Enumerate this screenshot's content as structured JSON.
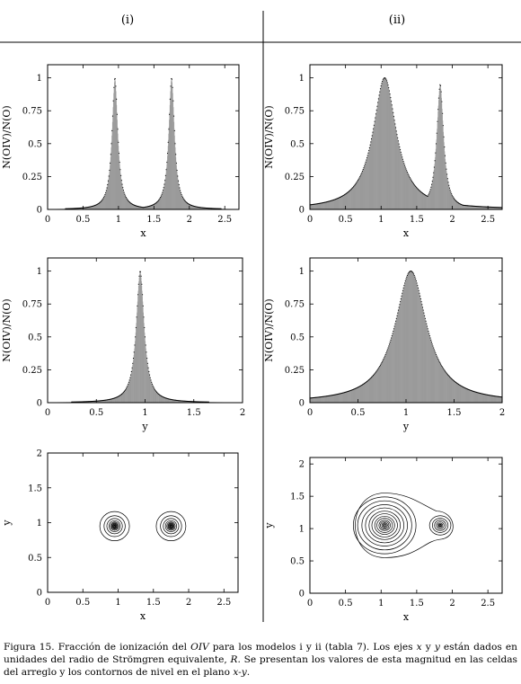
{
  "columns": [
    "(i)",
    "(ii)"
  ],
  "caption": {
    "fig": "Figura 15.",
    "t1": " Fracción de ionización del ",
    "ion": "OIV",
    "t2": " para los modelos i y ii (tabla 7). Los ejes ",
    "ax": "x",
    "t3": " y ",
    "ay": "y",
    "t4": " están dados en unidades del radio de Strömgren equivalente, ",
    "R": "R",
    "t5": ". Se presentan los valores de esta magnitud en las celdas del arreglo y los contornos de nivel en el plano ",
    "plane": "x-y",
    "t6": "."
  },
  "chart_data": [
    {
      "id": "i-x",
      "type": "scatter",
      "xlabel": "x",
      "ylabel": "N(OIV)/N(O)",
      "xlim": [
        0,
        2.7
      ],
      "ylim": [
        0,
        1.1
      ],
      "xticks": [
        "0",
        "0.5",
        "1",
        "1.5",
        "2",
        "2.5"
      ],
      "yticks": [
        "0",
        "0.25",
        "0.5",
        "0.75",
        "1"
      ],
      "peaks": [
        {
          "x": 0.95,
          "y": 1.0,
          "w": 0.05
        },
        {
          "x": 1.75,
          "y": 1.0,
          "w": 0.05
        }
      ]
    },
    {
      "id": "ii-x",
      "type": "scatter",
      "xlabel": "x",
      "ylabel": "N(OIV)/N(O)",
      "xlim": [
        0,
        2.7
      ],
      "ylim": [
        0,
        1.1
      ],
      "xticks": [
        "0",
        "0.5",
        "1",
        "1.5",
        "2",
        "2.5"
      ],
      "yticks": [
        "0",
        "0.25",
        "0.5",
        "0.75",
        "1"
      ],
      "peaks": [
        {
          "x": 1.05,
          "y": 1.0,
          "w": 0.2
        },
        {
          "x": 1.83,
          "y": 0.95,
          "w": 0.06
        }
      ]
    },
    {
      "id": "i-y",
      "type": "scatter",
      "xlabel": "y",
      "ylabel": "N(OIV)/N(O)",
      "xlim": [
        0,
        2
      ],
      "ylim": [
        0,
        1.1
      ],
      "xticks": [
        "0",
        "0.5",
        "1",
        "1.5",
        "2"
      ],
      "yticks": [
        "0",
        "0.25",
        "0.5",
        "0.75",
        "1"
      ],
      "peaks": [
        {
          "x": 0.95,
          "y": 1.0,
          "w": 0.05
        }
      ]
    },
    {
      "id": "ii-y",
      "type": "scatter",
      "xlabel": "y",
      "ylabel": "N(OIV)/N(O)",
      "xlim": [
        0,
        2
      ],
      "ylim": [
        0,
        1.1
      ],
      "xticks": [
        "0",
        "0.5",
        "1",
        "1.5",
        "2"
      ],
      "yticks": [
        "0",
        "0.25",
        "0.5",
        "0.75",
        "1"
      ],
      "peaks": [
        {
          "x": 1.05,
          "y": 1.0,
          "w": 0.2
        }
      ]
    },
    {
      "id": "i-xy",
      "type": "contour",
      "xlabel": "x",
      "ylabel": "y",
      "xlim": [
        0,
        2.7
      ],
      "ylim": [
        0,
        2
      ],
      "xticks": [
        "0",
        "0.5",
        "1",
        "1.5",
        "2",
        "2.5"
      ],
      "yticks": [
        "0",
        "0.5",
        "1",
        "1.5",
        "2"
      ],
      "centers": [
        {
          "x": 0.95,
          "y": 0.95
        },
        {
          "x": 1.75,
          "y": 0.95
        }
      ]
    },
    {
      "id": "ii-xy",
      "type": "contour",
      "xlabel": "x",
      "ylabel": "y",
      "xlim": [
        0,
        2.7
      ],
      "ylim": [
        0,
        2.1
      ],
      "xticks": [
        "0",
        "0.5",
        "1",
        "1.5",
        "2",
        "2.5"
      ],
      "yticks": [
        "0",
        "0.5",
        "1",
        "1.5",
        "2"
      ],
      "centers": [
        {
          "x": 1.05,
          "y": 1.05
        },
        {
          "x": 1.83,
          "y": 1.05
        }
      ]
    }
  ]
}
